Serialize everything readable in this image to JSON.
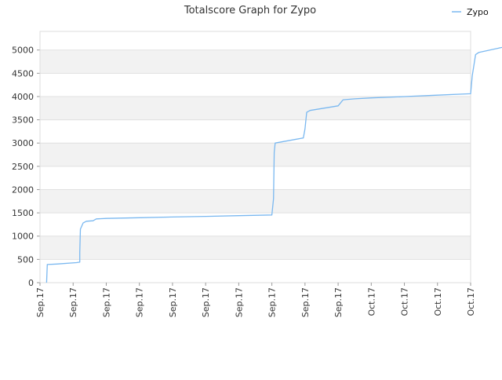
{
  "chart_data": {
    "type": "line",
    "title": "Totalscore Graph for Zypo",
    "xlabel": "",
    "ylabel": "",
    "ylim": [
      0,
      5400
    ],
    "yticks": [
      0,
      500,
      1000,
      1500,
      2000,
      2500,
      3000,
      3500,
      4000,
      4500,
      5000
    ],
    "xticks": [
      "Sep.17",
      "Sep.17",
      "Sep.17",
      "Sep.17",
      "Sep.17",
      "Sep.17",
      "Sep.17",
      "Sep.17",
      "Sep.17",
      "Sep.17",
      "Oct.17",
      "Oct.17",
      "Oct.17",
      "Oct.17"
    ],
    "grid": true,
    "legend": "top-right",
    "colors": {
      "line": "#7ab8f0",
      "band": "#f2f2f2",
      "grid": "#e0e0e0",
      "text": "#333333"
    },
    "series": [
      {
        "name": "Zypo",
        "points": [
          [
            0.2,
            0
          ],
          [
            0.22,
            390
          ],
          [
            0.5,
            400
          ],
          [
            1.1,
            430
          ],
          [
            1.2,
            440
          ],
          [
            1.2,
            650
          ],
          [
            1.22,
            1150
          ],
          [
            1.3,
            1280
          ],
          [
            1.4,
            1320
          ],
          [
            1.6,
            1330
          ],
          [
            1.7,
            1370
          ],
          [
            2,
            1380
          ],
          [
            3,
            1395
          ],
          [
            4,
            1410
          ],
          [
            5,
            1425
          ],
          [
            6,
            1440
          ],
          [
            7,
            1455
          ],
          [
            7.05,
            1800
          ],
          [
            7.07,
            2800
          ],
          [
            7.1,
            3000
          ],
          [
            7.95,
            3110
          ],
          [
            8.0,
            3300
          ],
          [
            8.05,
            3660
          ],
          [
            8.15,
            3700
          ],
          [
            9.0,
            3800
          ],
          [
            9.15,
            3930
          ],
          [
            9.5,
            3950
          ],
          [
            10,
            3970
          ],
          [
            11,
            4000
          ],
          [
            12,
            4030
          ],
          [
            13,
            4060
          ],
          [
            13.05,
            4450
          ],
          [
            13.15,
            4900
          ],
          [
            13.25,
            4950
          ],
          [
            14.1,
            5080
          ],
          [
            14.12,
            5200
          ]
        ]
      }
    ]
  }
}
